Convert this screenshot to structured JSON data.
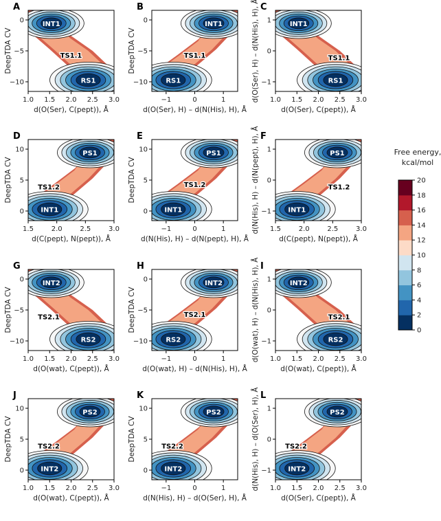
{
  "chart_data": {
    "type": "heatmap",
    "colormap": [
      "#053061",
      "#2166ac",
      "#4393c3",
      "#92c5de",
      "#d1e5f0",
      "#f7f7f7",
      "#fddbc7",
      "#f4a582",
      "#d6604d",
      "#b2182b",
      "#67001f"
    ],
    "colorbar": {
      "title": [
        "Free energy,",
        "kcal/mol"
      ],
      "range": [
        0,
        20
      ],
      "ticks": [
        "0",
        "2",
        "4",
        "6",
        "8",
        "10",
        "12",
        "14",
        "16",
        "18",
        "20"
      ]
    },
    "panels": [
      {
        "id": "A",
        "xlabel": "d(O(Ser), C(pept)), Å",
        "ylabel": "DeepTDA CV",
        "xticks": [
          "1.0",
          "1.5",
          "2.0",
          "2.5",
          "3.0"
        ],
        "yticks": [
          "0",
          "−5",
          "−10"
        ],
        "labels": [
          {
            "text": "INT1",
            "pos": "top-left"
          },
          {
            "text": "TS1.1",
            "pos": "middle"
          },
          {
            "text": "RS1",
            "pos": "bottom-right"
          }
        ]
      },
      {
        "id": "B",
        "xlabel": "d(O(Ser), H) – d(N(His), H), Å",
        "ylabel": "DeepTDA CV",
        "xticks": [
          "−1",
          "0",
          "1"
        ],
        "yticks": [
          "0",
          "−5",
          "−10"
        ],
        "labels": [
          {
            "text": "INT1",
            "pos": "top-right"
          },
          {
            "text": "TS1.1",
            "pos": "middle"
          },
          {
            "text": "RS1",
            "pos": "bottom-left"
          }
        ]
      },
      {
        "id": "C",
        "xlabel": "d(O(Ser), C(pept)), Å",
        "ylabel": "d(O(Ser), H) – d(N(His), H), Å",
        "xticks": [
          "1.0",
          "1.5",
          "2.0",
          "2.5",
          "3.0"
        ],
        "yticks": [
          "1",
          "0",
          "−1"
        ],
        "labels": [
          {
            "text": "INT1",
            "pos": "top-left"
          },
          {
            "text": "TS1.1",
            "pos": "middle-right"
          },
          {
            "text": "RS1",
            "pos": "bottom-right"
          }
        ]
      },
      {
        "id": "D",
        "xlabel": "d(C(pept), N(pept)), Å",
        "ylabel": "DeepTDA CV",
        "xticks": [
          "1.5",
          "2.0",
          "2.5",
          "3.0"
        ],
        "yticks": [
          "10",
          "5",
          "0"
        ],
        "labels": [
          {
            "text": "PS1",
            "pos": "top-right"
          },
          {
            "text": "TS1.2",
            "pos": "middle-left"
          },
          {
            "text": "INT1",
            "pos": "bottom-left"
          }
        ]
      },
      {
        "id": "E",
        "xlabel": "d(N(His), H) – d(N(pept), H), Å",
        "ylabel": "DeepTDA CV",
        "xticks": [
          "−1",
          "0",
          "1"
        ],
        "yticks": [
          "10",
          "5",
          "0"
        ],
        "labels": [
          {
            "text": "PS1",
            "pos": "top-right"
          },
          {
            "text": "TS1.2",
            "pos": "middle"
          },
          {
            "text": "INT1",
            "pos": "bottom-left"
          }
        ]
      },
      {
        "id": "F",
        "xlabel": "d(C(pept), N(pept)), Å",
        "ylabel": "d(N(His), H) – d(N(pept), H), Å",
        "xticks": [
          "1.5",
          "2.0",
          "2.5",
          "3.0"
        ],
        "yticks": [
          "1",
          "0",
          "−1"
        ],
        "labels": [
          {
            "text": "PS1",
            "pos": "top-right"
          },
          {
            "text": "TS1.2",
            "pos": "middle-right"
          },
          {
            "text": "INT1",
            "pos": "bottom-left"
          }
        ]
      },
      {
        "id": "G",
        "xlabel": "d(O(wat), C(pept)), Å",
        "ylabel": "DeepTDA CV",
        "xticks": [
          "1.0",
          "1.5",
          "2.0",
          "2.5",
          "3.0"
        ],
        "yticks": [
          "0",
          "−5",
          "−10"
        ],
        "labels": [
          {
            "text": "INT2",
            "pos": "top-left"
          },
          {
            "text": "TS2.1",
            "pos": "middle-left"
          },
          {
            "text": "RS2",
            "pos": "bottom-right"
          }
        ]
      },
      {
        "id": "H",
        "xlabel": "d(O(wat), H) – d(N(His), H), Å",
        "ylabel": "DeepTDA CV",
        "xticks": [
          "−1",
          "0",
          "1"
        ],
        "yticks": [
          "0",
          "−5",
          "−10"
        ],
        "labels": [
          {
            "text": "INT2",
            "pos": "top-right"
          },
          {
            "text": "TS2.1",
            "pos": "middle"
          },
          {
            "text": "RS2",
            "pos": "bottom-left"
          }
        ]
      },
      {
        "id": "I",
        "xlabel": "d(O(wat), C(pept)), Å",
        "ylabel": "d(O(wat), H) – d(N(His), H), Å",
        "xticks": [
          "1.0",
          "1.5",
          "2.0",
          "2.5",
          "3.0"
        ],
        "yticks": [
          "1",
          "0",
          "−1"
        ],
        "labels": [
          {
            "text": "INT2",
            "pos": "top-left"
          },
          {
            "text": "TS2.1",
            "pos": "middle-right"
          },
          {
            "text": "RS2",
            "pos": "bottom-right"
          }
        ]
      },
      {
        "id": "J",
        "xlabel": "d(O(wat), C(pept)), Å",
        "ylabel": "DeepTDA CV",
        "xticks": [
          "1.0",
          "1.5",
          "2.0",
          "2.5",
          "3.0"
        ],
        "yticks": [
          "10",
          "5",
          "0"
        ],
        "labels": [
          {
            "text": "PS2",
            "pos": "top-right"
          },
          {
            "text": "TS2.2",
            "pos": "middle-left"
          },
          {
            "text": "INT2",
            "pos": "bottom-left"
          }
        ]
      },
      {
        "id": "K",
        "xlabel": "d(N(His), H) – d(O(Ser), H), Å",
        "ylabel": "DeepTDA CV",
        "xticks": [
          "−1",
          "0",
          "1"
        ],
        "yticks": [
          "10",
          "5",
          "0"
        ],
        "labels": [
          {
            "text": "PS2",
            "pos": "top-right"
          },
          {
            "text": "TS2.2",
            "pos": "middle-left"
          },
          {
            "text": "INT2",
            "pos": "bottom-left"
          }
        ]
      },
      {
        "id": "L",
        "xlabel": "d(O(Ser), C(pept)), Å",
        "ylabel": "d(N(His), H) – d(O(Ser), H), Å",
        "xticks": [
          "1.0",
          "1.5",
          "2.0",
          "2.5",
          "3.0"
        ],
        "yticks": [
          "1",
          "0",
          "−1"
        ],
        "labels": [
          {
            "text": "PS2",
            "pos": "top-right"
          },
          {
            "text": "TS2.2",
            "pos": "middle-left"
          },
          {
            "text": "INT2",
            "pos": "bottom-left"
          }
        ]
      }
    ]
  }
}
